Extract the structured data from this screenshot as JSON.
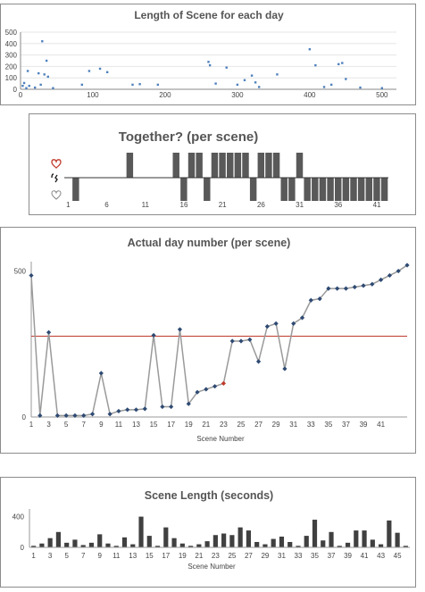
{
  "chart_data": [
    {
      "type": "scatter",
      "title": "Length of Scene for each day",
      "xlim": [
        0,
        520
      ],
      "ylim": [
        0,
        500
      ],
      "xticks": [
        0,
        100,
        200,
        300,
        400,
        500
      ],
      "yticks": [
        0,
        100,
        200,
        300,
        400,
        500
      ],
      "points": [
        [
          3,
          30
        ],
        [
          5,
          55
        ],
        [
          8,
          10
        ],
        [
          10,
          160
        ],
        [
          12,
          30
        ],
        [
          20,
          15
        ],
        [
          25,
          140
        ],
        [
          28,
          40
        ],
        [
          30,
          420
        ],
        [
          33,
          130
        ],
        [
          36,
          250
        ],
        [
          38,
          110
        ],
        [
          45,
          10
        ],
        [
          85,
          40
        ],
        [
          95,
          160
        ],
        [
          110,
          180
        ],
        [
          120,
          150
        ],
        [
          155,
          40
        ],
        [
          165,
          45
        ],
        [
          190,
          40
        ],
        [
          260,
          240
        ],
        [
          262,
          210
        ],
        [
          270,
          50
        ],
        [
          285,
          190
        ],
        [
          300,
          40
        ],
        [
          310,
          80
        ],
        [
          320,
          120
        ],
        [
          325,
          60
        ],
        [
          330,
          20
        ],
        [
          355,
          130
        ],
        [
          400,
          350
        ],
        [
          408,
          210
        ],
        [
          420,
          20
        ],
        [
          430,
          40
        ],
        [
          440,
          220
        ],
        [
          445,
          230
        ],
        [
          450,
          90
        ],
        [
          470,
          15
        ],
        [
          500,
          10
        ]
      ]
    },
    {
      "type": "bar",
      "title": "Together? (per scene)",
      "yicons": [
        "heart-red",
        "heart-broken",
        "heart-empty"
      ],
      "xticks": [
        1,
        6,
        11,
        16,
        21,
        26,
        31,
        36,
        41
      ],
      "values": [
        0,
        -1,
        0,
        0,
        0,
        0,
        0,
        0,
        1,
        0,
        0,
        0,
        0,
        0,
        1,
        -1,
        1,
        1,
        -1,
        1,
        1,
        1,
        1,
        1,
        -1,
        1,
        1,
        1,
        -1,
        -1,
        1,
        -1,
        -1,
        -1,
        -1,
        -1,
        -1,
        -1,
        -1,
        -1,
        -1,
        -1
      ]
    },
    {
      "type": "line",
      "title": "Actual day number (per scene)",
      "xlabel": "Scene Number",
      "ylim": [
        0,
        520
      ],
      "yticks": [
        0,
        500
      ],
      "xticks": [
        1,
        3,
        5,
        7,
        9,
        11,
        13,
        15,
        17,
        19,
        21,
        23,
        25,
        27,
        29,
        31,
        33,
        35,
        37,
        39,
        41
      ],
      "reference_line": 277,
      "highlight_index": 22,
      "values": [
        485,
        5,
        290,
        5,
        5,
        5,
        5,
        10,
        150,
        10,
        20,
        25,
        25,
        28,
        280,
        35,
        35,
        300,
        45,
        85,
        95,
        105,
        115,
        260,
        260,
        265,
        190,
        310,
        320,
        165,
        320,
        340,
        400,
        405,
        440,
        440,
        440,
        445,
        450,
        455,
        470,
        485,
        500,
        520
      ]
    },
    {
      "type": "bar",
      "title": "Scene Length (seconds)",
      "xlabel": "Scene Number",
      "ylim": [
        0,
        500
      ],
      "yticks": [
        0,
        400
      ],
      "xticks": [
        1,
        3,
        5,
        7,
        9,
        11,
        13,
        15,
        17,
        19,
        21,
        23,
        25,
        27,
        29,
        31,
        33,
        35,
        37,
        39,
        41,
        43,
        45
      ],
      "values": [
        20,
        50,
        120,
        200,
        60,
        100,
        30,
        60,
        170,
        50,
        20,
        130,
        40,
        400,
        150,
        20,
        260,
        120,
        50,
        20,
        40,
        80,
        160,
        180,
        160,
        260,
        220,
        70,
        40,
        110,
        140,
        70,
        20,
        150,
        360,
        90,
        200,
        20,
        60,
        220,
        220,
        100,
        40,
        350,
        190,
        20
      ]
    }
  ]
}
